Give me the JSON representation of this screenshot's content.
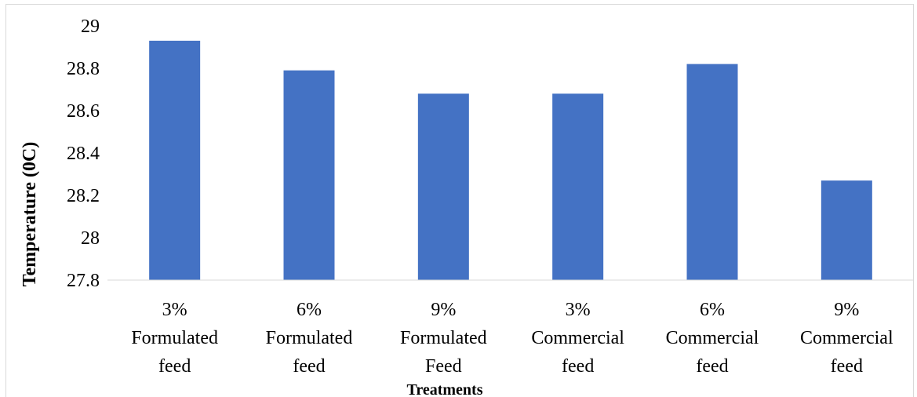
{
  "chart_data": {
    "type": "bar",
    "categories": [
      [
        "3%",
        "Formulated",
        "feed"
      ],
      [
        "6%",
        "Formulated",
        "feed"
      ],
      [
        "9%",
        "Formulated",
        "Feed"
      ],
      [
        "3%",
        "Commercial",
        "feed"
      ],
      [
        "6%",
        "Commercial",
        "feed"
      ],
      [
        "9%",
        "Commercial",
        "feed"
      ]
    ],
    "values": [
      28.93,
      28.79,
      28.68,
      28.68,
      28.82,
      28.27
    ],
    "title": "",
    "xlabel": "Treatments",
    "ylabel": "Temperature (0C)",
    "ylim": [
      27.8,
      29
    ],
    "yticks": [
      27.8,
      28,
      28.2,
      28.4,
      28.6,
      28.8,
      29
    ],
    "ytick_labels": [
      "27.8",
      "28",
      "28.2",
      "28.4",
      "28.6",
      "28.8",
      "29"
    ],
    "bar_color": "#4472c4",
    "grid": false,
    "legend": "none"
  }
}
